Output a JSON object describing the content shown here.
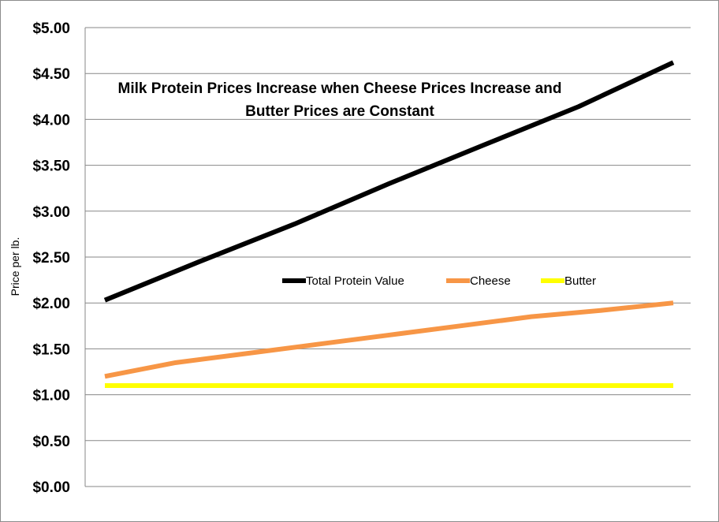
{
  "chart_data": {
    "type": "line",
    "title": "Milk Protein Prices Increase when Cheese Prices Increase and Butter Prices are Constant",
    "title_lines": [
      "Milk Protein Prices Increase when Cheese Prices Increase and",
      "Butter Prices are Constant"
    ],
    "xlabel": "",
    "ylabel": "Price per lb.",
    "ylim": [
      0,
      5
    ],
    "yticks": [
      0,
      0.5,
      1,
      1.5,
      2,
      2.5,
      3,
      3.5,
      4,
      4.5,
      5
    ],
    "ytick_labels": [
      "$0.00",
      "$0.50",
      "$1.00",
      "$1.50",
      "$2.00",
      "$2.50",
      "$3.00",
      "$3.50",
      "$4.00",
      "$4.50",
      "$5.00"
    ],
    "x": [
      1,
      2,
      3,
      4,
      5,
      6,
      7,
      8,
      9
    ],
    "grid": true,
    "legend_position": "center",
    "series": [
      {
        "name": "Total Protein Value",
        "color": "#000000",
        "values": [
          2.03,
          2.45,
          2.86,
          3.3,
          3.72,
          4.14,
          4.62
        ],
        "x": [
          1,
          2.33,
          3.67,
          5,
          6.33,
          7.67,
          9
        ]
      },
      {
        "name": "Cheese",
        "color": "#f79646",
        "values": [
          1.2,
          1.35,
          1.45,
          1.55,
          1.65,
          1.75,
          1.85,
          1.92,
          2.0
        ],
        "x": [
          1,
          2,
          3,
          4,
          5,
          6,
          7,
          8,
          9
        ]
      },
      {
        "name": "Butter",
        "color": "#ffff00",
        "values": [
          1.1,
          1.1
        ],
        "x": [
          1,
          9
        ]
      }
    ]
  }
}
